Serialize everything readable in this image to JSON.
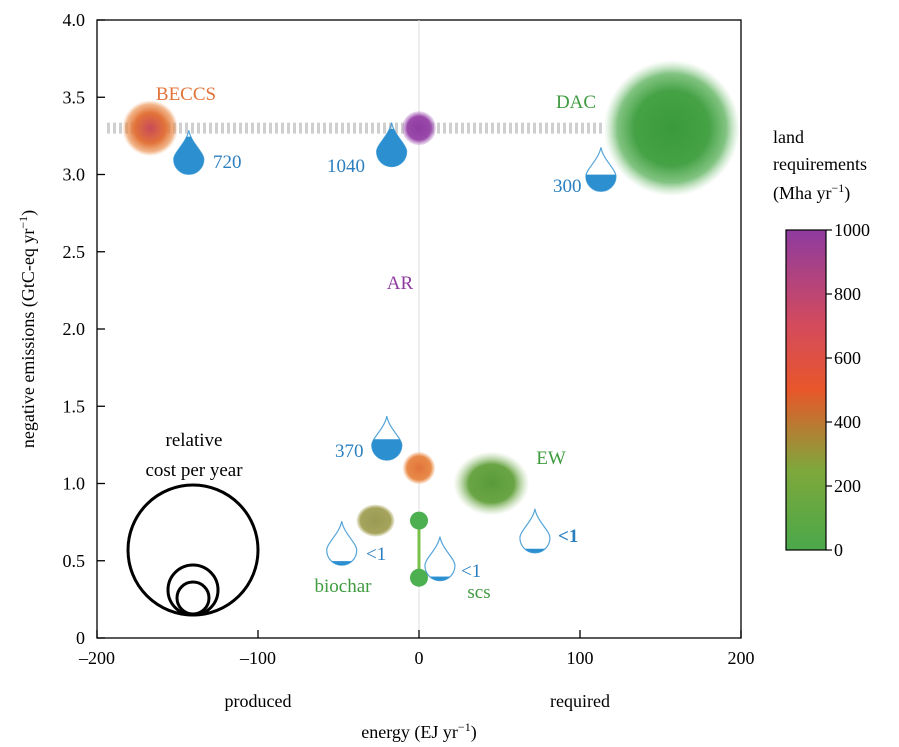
{
  "chart_data": {
    "type": "scatter",
    "xlabel": "energy (EJ yr",
    "xlabel_sup": "−1",
    "xlabel_end": ")",
    "ylabel": "negative emissions (GtC-eq yr",
    "ylabel_sup": "−1",
    "ylabel_end": ")",
    "xlim": [
      -200,
      200
    ],
    "ylim": [
      0,
      4.0
    ],
    "x_ticks": [
      {
        "value": -200,
        "label": "–200"
      },
      {
        "value": -100,
        "label": "–100"
      },
      {
        "value": 0,
        "label": "0"
      },
      {
        "value": 100,
        "label": "100"
      },
      {
        "value": 200,
        "label": "200"
      }
    ],
    "y_ticks": [
      {
        "value": 0,
        "label": "0"
      },
      {
        "value": 0.5,
        "label": "0.5"
      },
      {
        "value": 1.0,
        "label": "1.0"
      },
      {
        "value": 1.5,
        "label": "1.5"
      },
      {
        "value": 2.0,
        "label": "2.0"
      },
      {
        "value": 2.5,
        "label": "2.5"
      },
      {
        "value": 3.0,
        "label": "3.0"
      },
      {
        "value": 3.5,
        "label": "3.5"
      },
      {
        "value": 4.0,
        "label": "4.0"
      }
    ],
    "x_region_labels": [
      {
        "x": -100,
        "label": "produced"
      },
      {
        "x": 100,
        "label": "required"
      }
    ],
    "grid": false,
    "reference_lines": [
      {
        "orientation": "vertical",
        "x": 0
      },
      {
        "orientation": "horizontal_dashed",
        "y": 3.3,
        "from_x": -200,
        "to_x": 120
      }
    ],
    "technologies": [
      {
        "name": "BECCS",
        "x": -167,
        "y": 3.3,
        "land": 700,
        "color": "#e2733a",
        "water": {
          "label": "720",
          "x": -143,
          "y": 3.15,
          "fill": 0.85
        }
      },
      {
        "name": "AR",
        "x": 0,
        "y": 3.3,
        "y_low": 1.1,
        "land": 1000,
        "land_low": 600,
        "color": "#8e3ba0",
        "water": {
          "label": "1040",
          "x": -17,
          "y": 3.2,
          "fill": 0.85
        },
        "water_low": {
          "label": "370",
          "x": -20,
          "y": 1.3,
          "fill": 0.45
        }
      },
      {
        "name": "DAC",
        "x": 157,
        "y": 3.3,
        "land": 50,
        "color": "#3f9b3f",
        "water": {
          "label": "300",
          "x": 113,
          "y": 3.04,
          "fill": 0.35
        }
      },
      {
        "name": "EW",
        "x": 45,
        "y": 1.0,
        "land": 50,
        "color": "#3f9b3f",
        "water": {
          "label": "<1",
          "x": 72,
          "y": 0.7,
          "fill": 0.05
        }
      },
      {
        "name": "biochar",
        "x": -27,
        "y": 0.76,
        "land": 150,
        "color": "#9a9a55",
        "water": {
          "label": "<1",
          "x": -48,
          "y": 0.62,
          "fill": 0.05
        }
      },
      {
        "name": "scs",
        "x": 0,
        "y": 0.76,
        "y_low": 0.39,
        "land": 0,
        "color": "#4caf50",
        "water": {
          "label": "<1",
          "x": 13,
          "y": 0.52,
          "fill": 0.05
        }
      }
    ],
    "legend": {
      "size_title_line1": "relative",
      "size_title_line2": "cost per year",
      "colorbar_title_line1": "land",
      "colorbar_title_line2": "requirements",
      "colorbar_title_line3": "(Mha yr",
      "colorbar_title_sup": "−1",
      "colorbar_title_end": ")",
      "colorbar_range": [
        0,
        1000
      ],
      "colorbar_ticks": [
        {
          "value": 0,
          "label": "0"
        },
        {
          "value": 200,
          "label": "200"
        },
        {
          "value": 400,
          "label": "400"
        },
        {
          "value": 600,
          "label": "600"
        },
        {
          "value": 800,
          "label": "800"
        },
        {
          "value": 1000,
          "label": "1000"
        }
      ],
      "colorbar_colors": [
        "#4aa84a",
        "#7ea83b",
        "#e8562a",
        "#d44b5c",
        "#8e3ba0"
      ]
    },
    "colors": {
      "water": "#2b8fd0",
      "water_label": "#2b7fbf",
      "label_green": "#3f9b3f",
      "label_orange": "#e2733a",
      "label_purple": "#8e3ba0",
      "dash": "#cfcfcf"
    }
  }
}
